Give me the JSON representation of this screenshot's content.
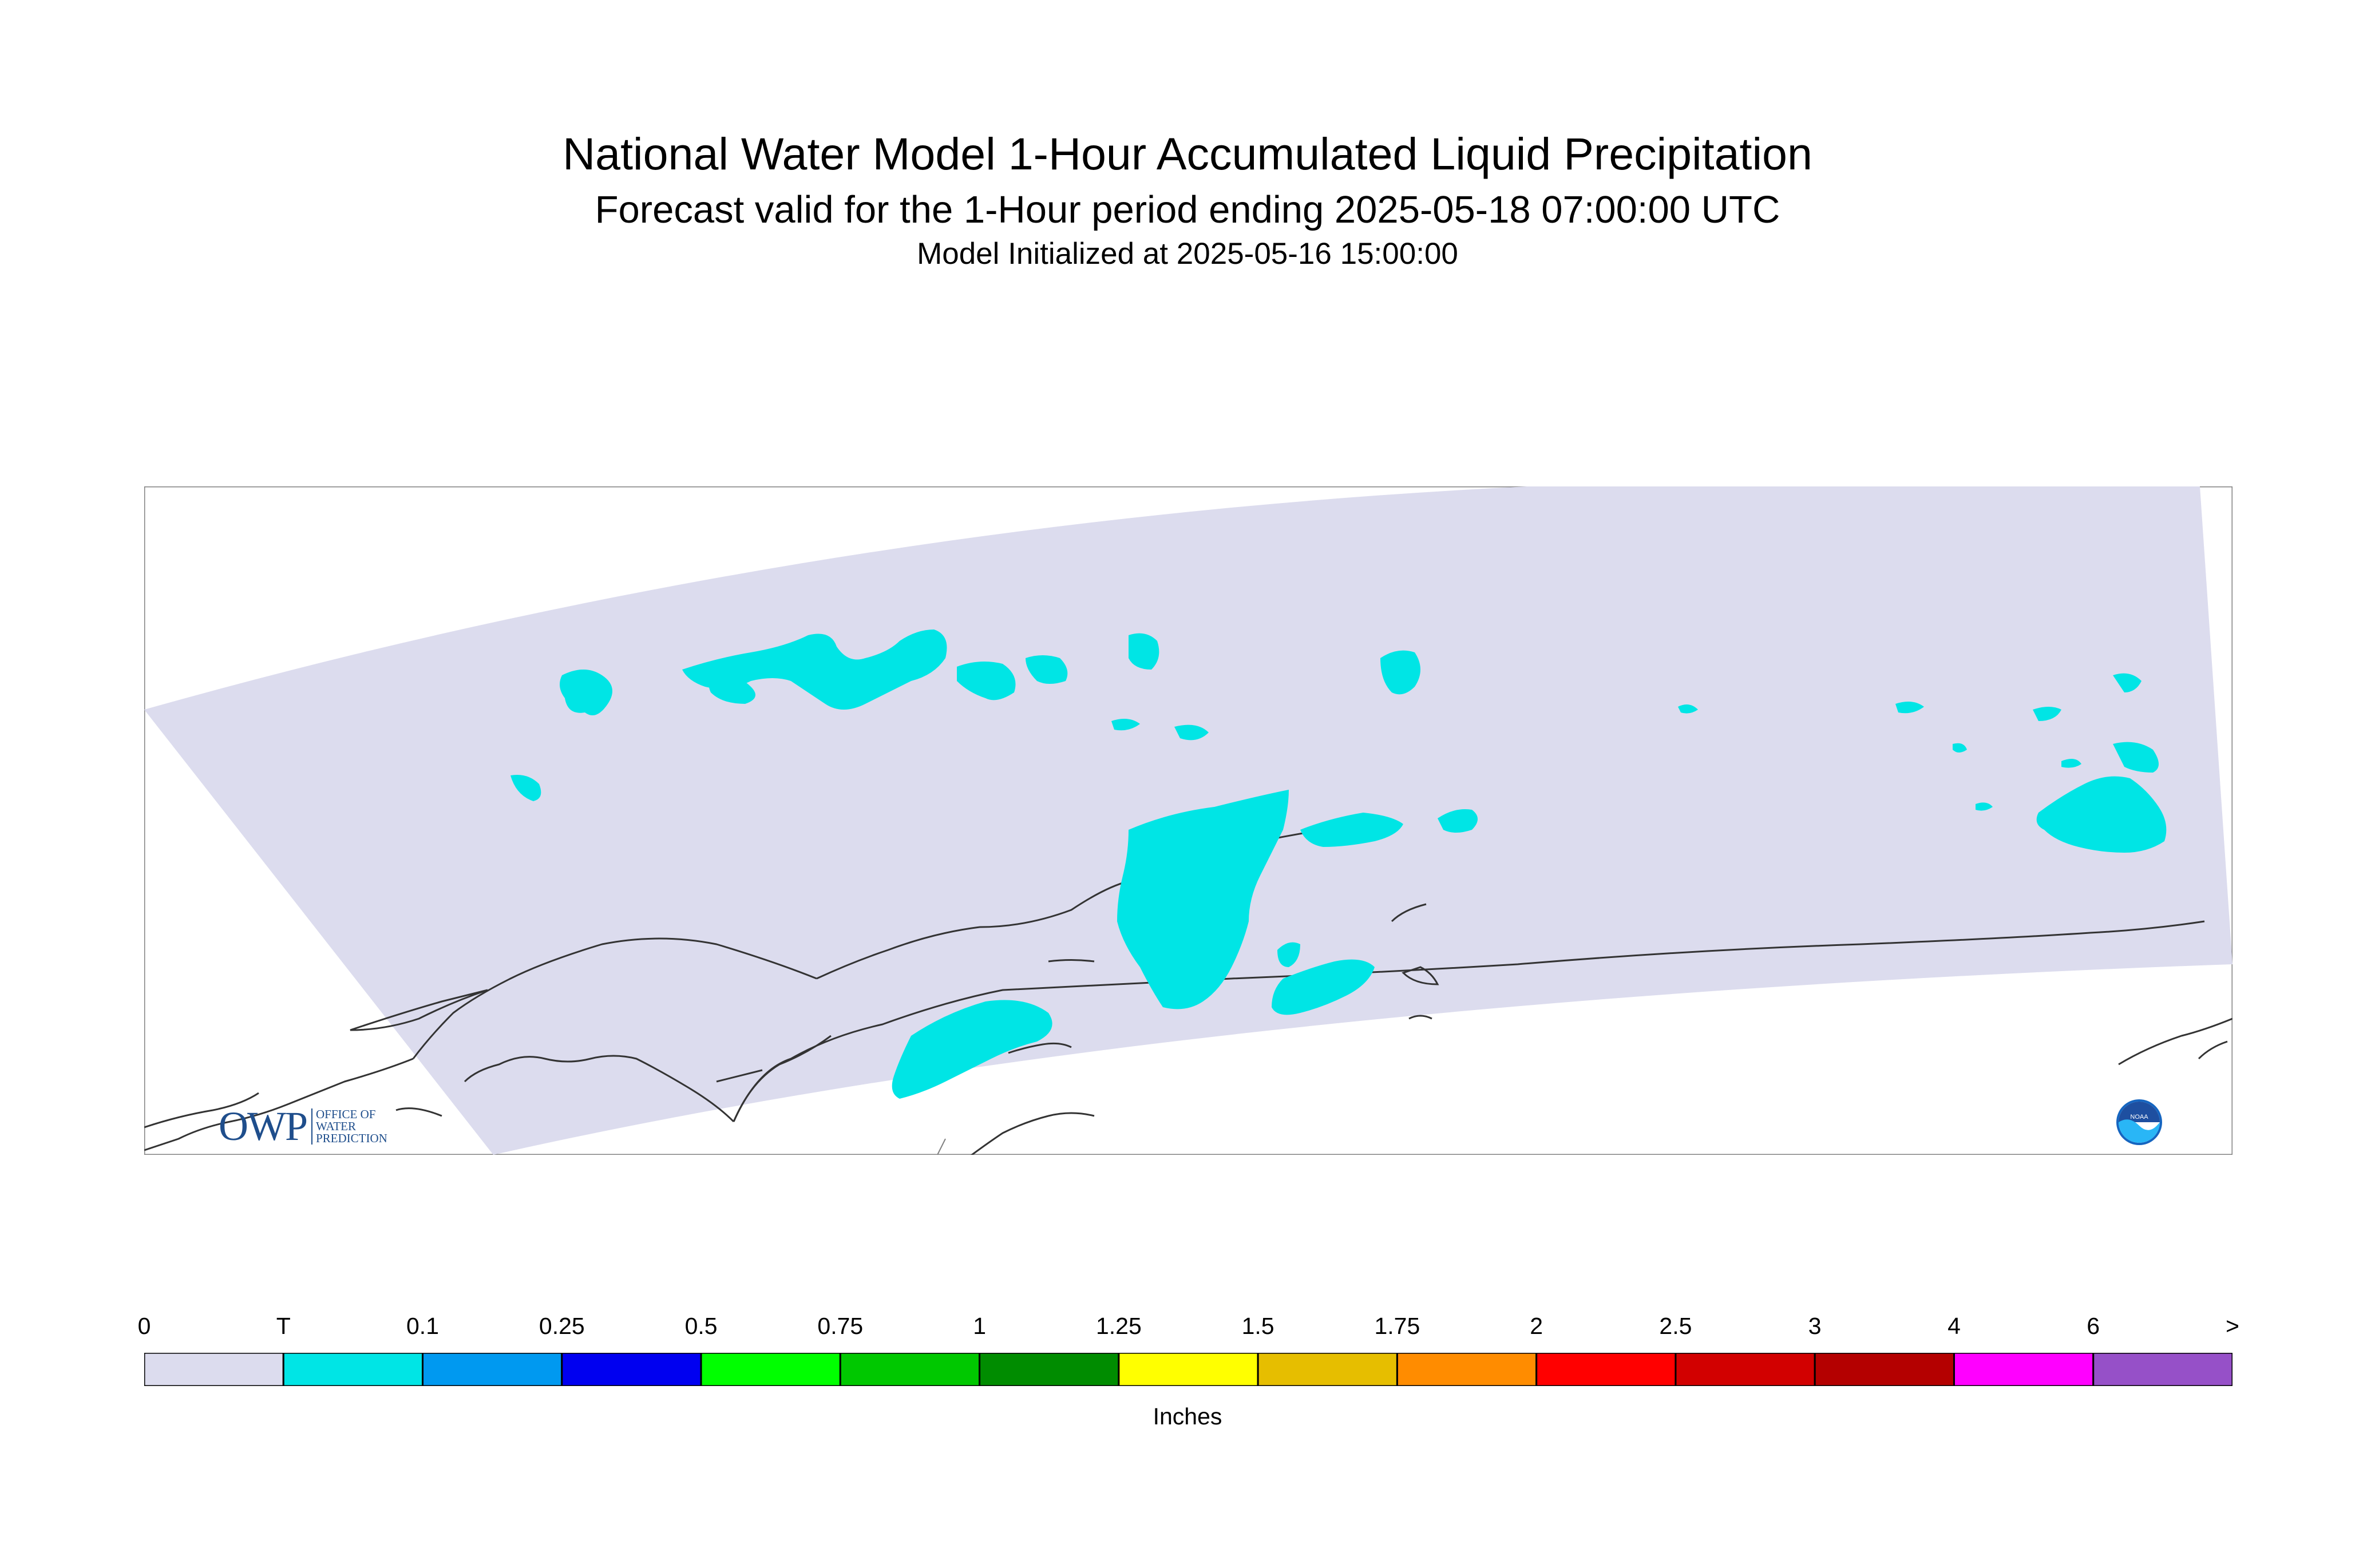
{
  "header": {
    "title": "National Water Model 1-Hour Accumulated Liquid Precipitation",
    "subtitle": "Forecast valid for the 1-Hour period ending 2025-05-18 07:00:00 UTC",
    "init": "Model Initialized at 2025-05-16 15:00:00"
  },
  "map": {
    "domain_fill": "#dcdcee",
    "precip_fill": "#00e5e5",
    "coast_color": "#333333",
    "border_color": "#808080"
  },
  "logos": {
    "owp_big": "OWP",
    "owp_line1": "OFFICE OF",
    "owp_line2": "WATER",
    "owp_line3": "PREDICTION",
    "noaa_text": "NOAA",
    "noaa_icon": "noaa-logo-icon"
  },
  "legend": {
    "units": "Inches",
    "tick_labels": [
      "0",
      "T",
      "0.1",
      "0.25",
      "0.5",
      "0.75",
      "1",
      "1.25",
      "1.5",
      "1.75",
      "2",
      "2.5",
      "3",
      "4",
      "6",
      ">"
    ],
    "colors": [
      "#dcdcee",
      "#00e5e5",
      "#0099f0",
      "#0000f0",
      "#00ff00",
      "#00c800",
      "#008c00",
      "#ffff00",
      "#e6be00",
      "#ff8c00",
      "#ff0000",
      "#d20000",
      "#b40000",
      "#ff00ff",
      "#9650c8"
    ]
  }
}
